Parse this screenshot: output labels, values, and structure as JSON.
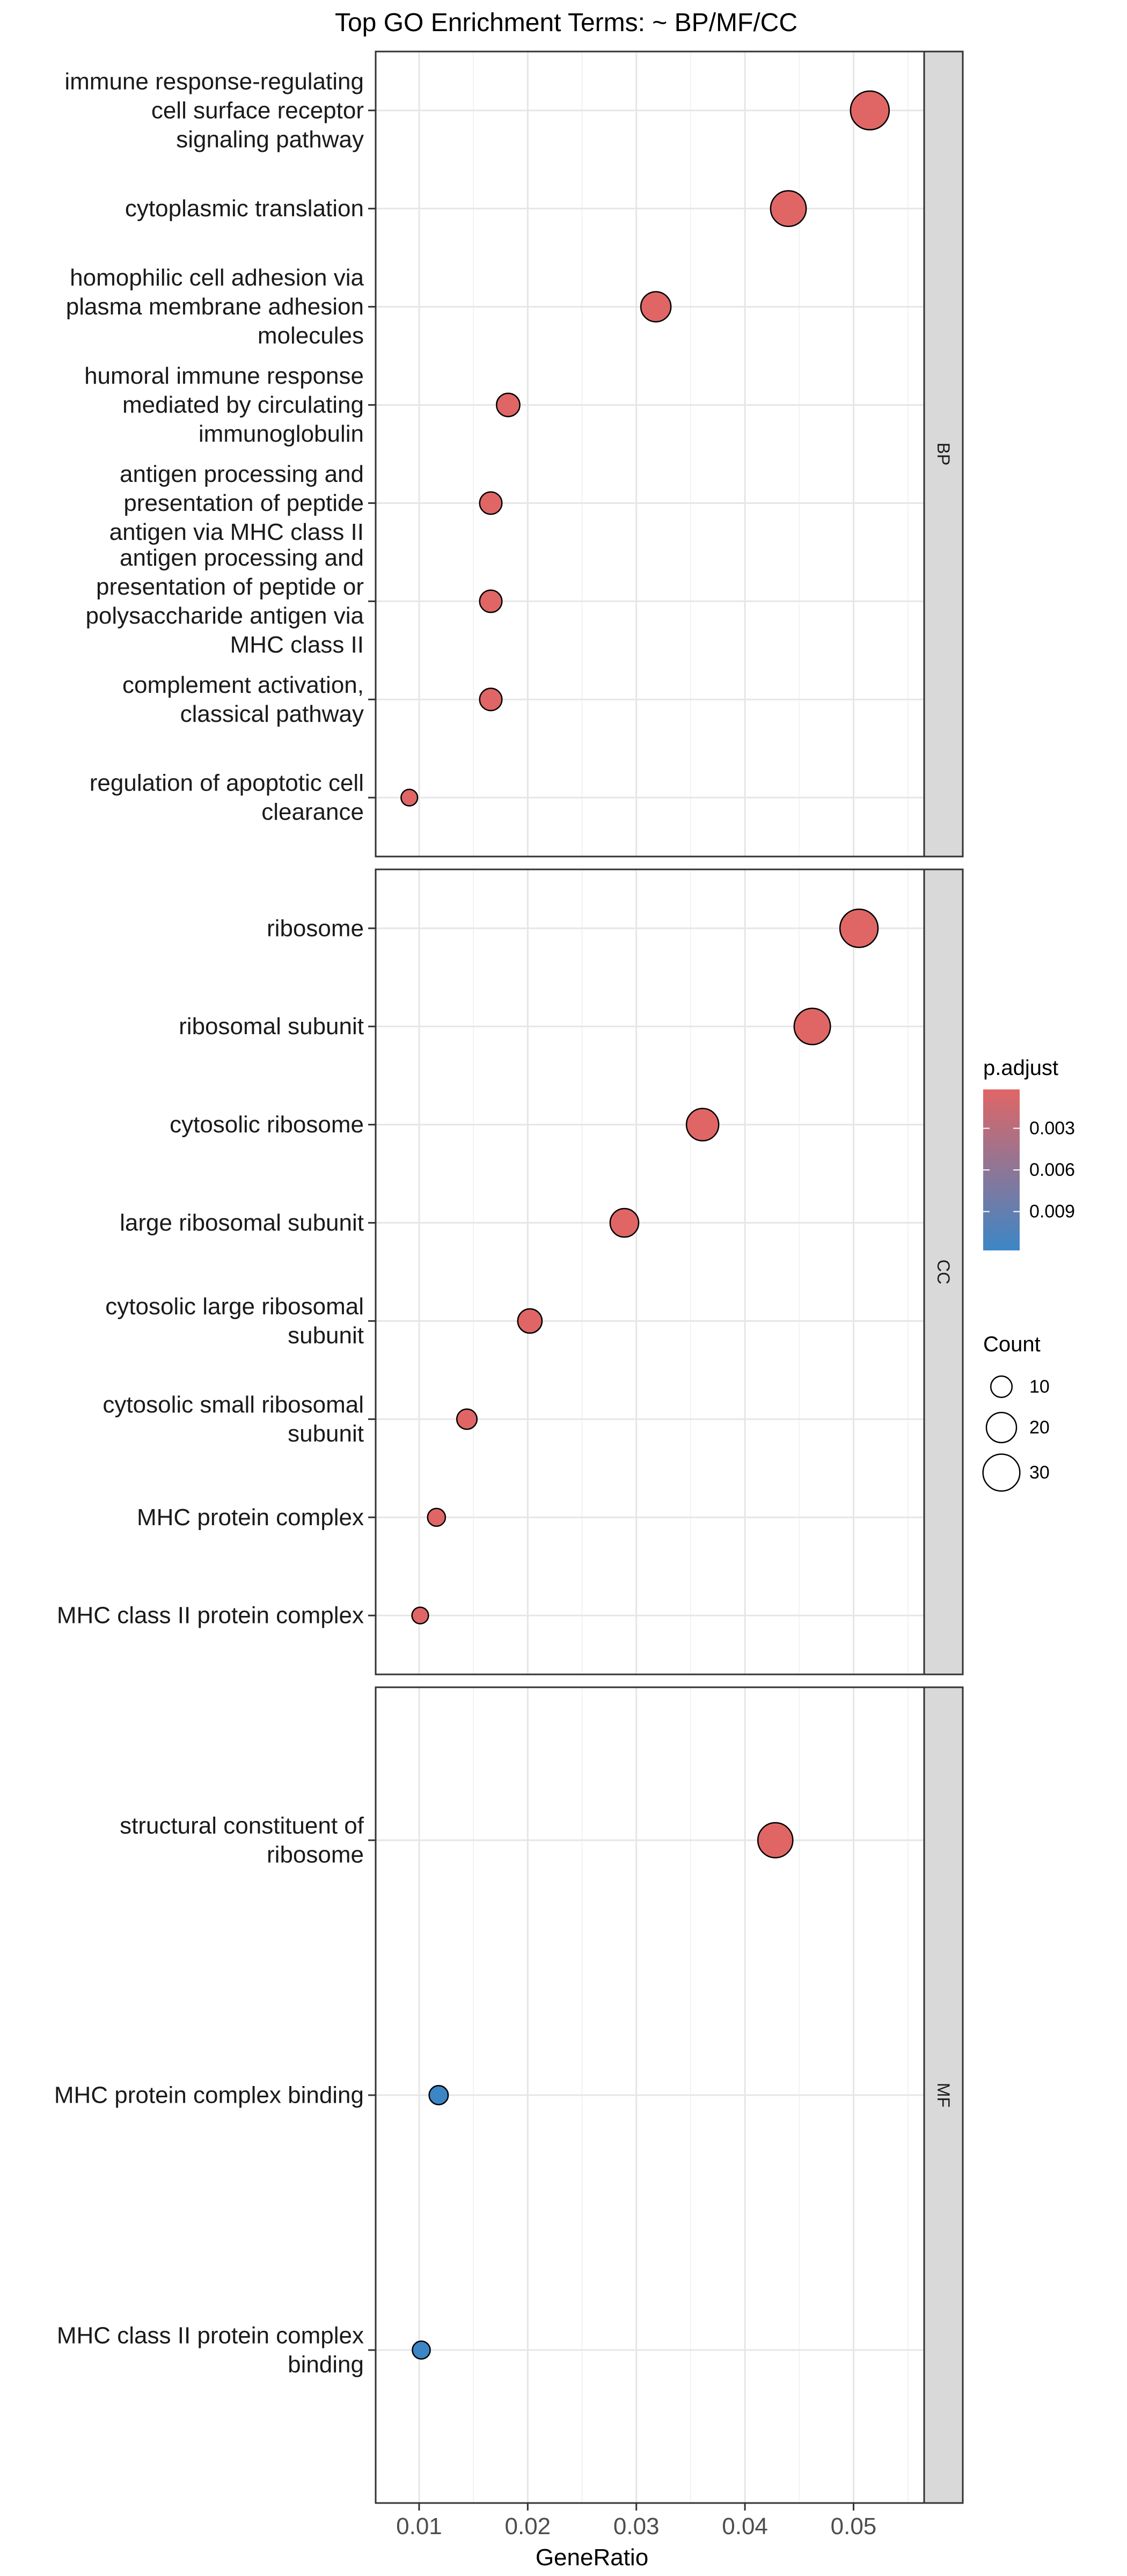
{
  "chart_data": {
    "type": "scatter",
    "title": "Top GO Enrichment Terms: ~ BP/MF/CC",
    "xlabel": "GeneRatio",
    "xlim": [
      0.006,
      0.0565
    ],
    "x_ticks": [
      0.01,
      0.02,
      0.03,
      0.04,
      0.05
    ],
    "x_tick_labels": [
      "0.01",
      "0.02",
      "0.03",
      "0.04",
      "0.05"
    ],
    "grid": true,
    "facets": [
      {
        "name": "BP",
        "points": [
          {
            "term": "immune response-regulating cell surface receptor signaling pathway",
            "lines": [
              "immune response-regulating",
              "cell surface receptor",
              "signaling pathway"
            ],
            "gene_ratio": 0.0515,
            "count": 33,
            "p_adjust": 0.0002
          },
          {
            "term": "cytoplasmic translation",
            "lines": [
              "cytoplasmic translation"
            ],
            "gene_ratio": 0.044,
            "count": 28,
            "p_adjust": 0.0002
          },
          {
            "term": "homophilic cell adhesion via plasma membrane adhesion molecules",
            "lines": [
              "homophilic cell adhesion via",
              "plasma membrane adhesion",
              "molecules"
            ],
            "gene_ratio": 0.0318,
            "count": 20,
            "p_adjust": 0.0002
          },
          {
            "term": "humoral immune response mediated by circulating immunoglobulin",
            "lines": [
              "humoral immune response",
              "mediated by circulating",
              "immunoglobulin"
            ],
            "gene_ratio": 0.0182,
            "count": 12,
            "p_adjust": 0.0002
          },
          {
            "term": "antigen processing and presentation of peptide antigen via MHC class II",
            "lines": [
              "antigen processing and",
              "presentation of peptide",
              "antigen via MHC class II"
            ],
            "gene_ratio": 0.0166,
            "count": 11,
            "p_adjust": 0.0002
          },
          {
            "term": "antigen processing and presentation of peptide or polysaccharide antigen via MHC class II",
            "lines": [
              "antigen processing and",
              "presentation of peptide or",
              "polysaccharide antigen via",
              "MHC class II"
            ],
            "gene_ratio": 0.0166,
            "count": 11,
            "p_adjust": 0.0002
          },
          {
            "term": "complement activation, classical pathway",
            "lines": [
              "complement activation,",
              "classical pathway"
            ],
            "gene_ratio": 0.0166,
            "count": 11,
            "p_adjust": 0.0002
          },
          {
            "term": "regulation of apoptotic cell clearance",
            "lines": [
              "regulation of apoptotic cell",
              "clearance"
            ],
            "gene_ratio": 0.0091,
            "count": 6,
            "p_adjust": 0.0002
          }
        ]
      },
      {
        "name": "CC",
        "points": [
          {
            "term": "ribosome",
            "lines": [
              "ribosome"
            ],
            "gene_ratio": 0.0505,
            "count": 32,
            "p_adjust": 0.0002
          },
          {
            "term": "ribosomal subunit",
            "lines": [
              "ribosomal subunit"
            ],
            "gene_ratio": 0.0462,
            "count": 29,
            "p_adjust": 0.0002
          },
          {
            "term": "cytosolic ribosome",
            "lines": [
              "cytosolic ribosome"
            ],
            "gene_ratio": 0.0361,
            "count": 23,
            "p_adjust": 0.0002
          },
          {
            "term": "large ribosomal subunit",
            "lines": [
              "large ribosomal subunit"
            ],
            "gene_ratio": 0.0289,
            "count": 18,
            "p_adjust": 0.0002
          },
          {
            "term": "cytosolic large ribosomal subunit",
            "lines": [
              "cytosolic large ribosomal",
              "subunit"
            ],
            "gene_ratio": 0.0202,
            "count": 13,
            "p_adjust": 0.0002
          },
          {
            "term": "cytosolic small ribosomal subunit",
            "lines": [
              "cytosolic small ribosomal",
              "subunit"
            ],
            "gene_ratio": 0.0144,
            "count": 9,
            "p_adjust": 0.0002
          },
          {
            "term": "MHC protein complex",
            "lines": [
              "MHC protein complex"
            ],
            "gene_ratio": 0.0116,
            "count": 7,
            "p_adjust": 0.0002
          },
          {
            "term": "MHC class II protein complex",
            "lines": [
              "MHC class II protein complex"
            ],
            "gene_ratio": 0.0101,
            "count": 6,
            "p_adjust": 0.0002
          }
        ]
      },
      {
        "name": "MF",
        "points": [
          {
            "term": "structural constituent of ribosome",
            "lines": [
              "structural constituent of",
              "ribosome"
            ],
            "gene_ratio": 0.0428,
            "count": 27,
            "p_adjust": 0.0002
          },
          {
            "term": "MHC protein complex binding",
            "lines": [
              "MHC protein complex binding"
            ],
            "gene_ratio": 0.0118,
            "count": 8,
            "p_adjust": 0.0118
          },
          {
            "term": "MHC class II protein complex binding",
            "lines": [
              "MHC class II protein complex",
              "binding"
            ],
            "gene_ratio": 0.0102,
            "count": 7,
            "p_adjust": 0.0118
          }
        ]
      }
    ],
    "legend_color": {
      "title": "p.adjust",
      "range": [
        0.0002,
        0.0118
      ],
      "low_color": "#E06666",
      "high_color": "#3C86C6",
      "ticks": [
        0.003,
        0.006,
        0.009
      ],
      "tick_labels": [
        "0.003",
        "0.006",
        "0.009"
      ]
    },
    "legend_size": {
      "title": "Count",
      "values": [
        10,
        20,
        30
      ],
      "labels": [
        "10",
        "20",
        "30"
      ]
    }
  }
}
